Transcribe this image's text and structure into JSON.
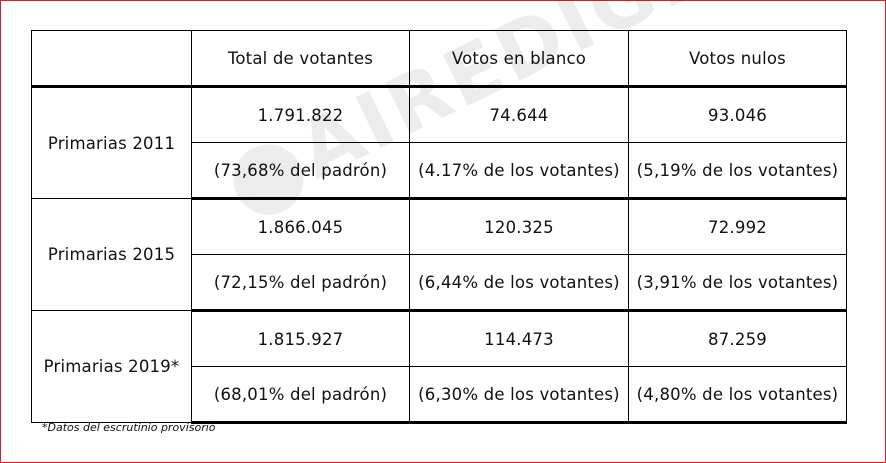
{
  "watermark": "AIREDIGITAL",
  "table": {
    "headers": [
      "Total de votantes",
      "Votos en blanco",
      "Votos nulos"
    ],
    "groups": [
      {
        "label": "Primarias 2011",
        "values": [
          "1.791.822",
          "74.644",
          "93.046"
        ],
        "percents": [
          "(73,68% del padrón)",
          "(4.17% de los votantes)",
          "(5,19% de los votantes)"
        ]
      },
      {
        "label": "Primarias 2015",
        "values": [
          "1.866.045",
          "120.325",
          "72.992"
        ],
        "percents": [
          "(72,15% del padrón)",
          "(6,44% de los votantes)",
          "(3,91% de los votantes)"
        ]
      },
      {
        "label": "Primarias 2019*",
        "values": [
          "1.815.927",
          "114.473",
          "87.259"
        ],
        "percents": [
          "(68,01% del padrón)",
          "(6,30% de los votantes)",
          "(4,80% de los votantes)"
        ]
      }
    ]
  },
  "footnote": "*Datos del escrutinio provisorio"
}
